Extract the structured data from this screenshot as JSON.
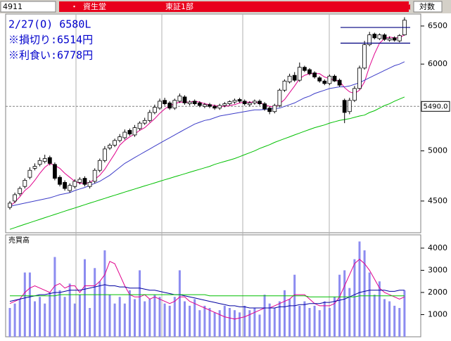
{
  "header": {
    "code": "4911",
    "bullet": "・",
    "name": "資生堂",
    "market": "東証1部",
    "scale": "対数"
  },
  "chart_data": [
    {
      "type": "candlestick",
      "log": true,
      "grid": false,
      "annotations": [
        "2/27(O) 6580L",
        "※損切り:6514円",
        "※利食い:6778円"
      ],
      "up_color": "#ffffff",
      "down_color": "#000000",
      "open": [
        4440,
        4500,
        4570,
        4640,
        4730,
        4820,
        4860,
        4890,
        4930,
        4860,
        4730,
        4680,
        4600,
        4640,
        4680,
        4720,
        4640,
        4690,
        4800,
        4900,
        5030,
        5060,
        5110,
        5140,
        5220,
        5170,
        5240,
        5300,
        5330,
        5420,
        5470,
        5560,
        5530,
        5470,
        5550,
        5600,
        5520,
        5550,
        5530,
        5490,
        5510,
        5490,
        5470,
        5500,
        5520,
        5540,
        5570,
        5550,
        5510,
        5530,
        5550,
        5520,
        5470,
        5430,
        5500,
        5680,
        5780,
        5860,
        5800,
        5960,
        5930,
        5890,
        5830,
        5790,
        5760,
        5850,
        5800,
        5560,
        5430,
        5560,
        5700,
        5950,
        6250,
        6390,
        6330,
        6380,
        6310,
        6340,
        6300,
        6380
      ],
      "high": [
        4500,
        4580,
        4640,
        4720,
        4830,
        4870,
        4930,
        4960,
        4950,
        4880,
        4750,
        4700,
        4670,
        4710,
        4730,
        4740,
        4700,
        4820,
        4920,
        5050,
        5080,
        5130,
        5180,
        5230,
        5240,
        5280,
        5320,
        5360,
        5450,
        5510,
        5580,
        5590,
        5550,
        5580,
        5640,
        5620,
        5560,
        5570,
        5550,
        5530,
        5530,
        5510,
        5520,
        5540,
        5560,
        5580,
        5590,
        5570,
        5550,
        5570,
        5570,
        5540,
        5490,
        5520,
        5700,
        5810,
        5880,
        5900,
        6020,
        5980,
        5950,
        5910,
        5850,
        5810,
        5870,
        5870,
        5820,
        5580,
        5590,
        5730,
        5980,
        6300,
        6420,
        6410,
        6400,
        6400,
        6360,
        6360,
        6390,
        6620
      ],
      "low": [
        4420,
        4480,
        4550,
        4620,
        4710,
        4800,
        4840,
        4870,
        4850,
        4700,
        4640,
        4600,
        4580,
        4620,
        4660,
        4640,
        4620,
        4670,
        4780,
        4880,
        5010,
        5040,
        5090,
        5120,
        5160,
        5150,
        5220,
        5280,
        5310,
        5400,
        5450,
        5500,
        5450,
        5450,
        5530,
        5510,
        5500,
        5500,
        5480,
        5470,
        5470,
        5450,
        5450,
        5480,
        5500,
        5520,
        5530,
        5500,
        5490,
        5510,
        5500,
        5440,
        5400,
        5410,
        5480,
        5660,
        5760,
        5780,
        5780,
        5900,
        5860,
        5820,
        5770,
        5740,
        5740,
        5780,
        5720,
        5300,
        5400,
        5540,
        5690,
        5930,
        6230,
        6320,
        6310,
        6300,
        6290,
        6290,
        6280,
        6370
      ],
      "close": [
        4480,
        4560,
        4620,
        4700,
        4800,
        4840,
        4900,
        4920,
        4870,
        4720,
        4660,
        4620,
        4650,
        4690,
        4710,
        4660,
        4680,
        4800,
        4900,
        5020,
        5060,
        5110,
        5150,
        5200,
        5180,
        5250,
        5300,
        5330,
        5420,
        5480,
        5550,
        5520,
        5470,
        5560,
        5610,
        5530,
        5540,
        5520,
        5500,
        5510,
        5490,
        5470,
        5500,
        5520,
        5545,
        5560,
        5550,
        5520,
        5530,
        5550,
        5520,
        5460,
        5430,
        5500,
        5680,
        5790,
        5850,
        5800,
        5960,
        5920,
        5880,
        5840,
        5790,
        5760,
        5850,
        5790,
        5740,
        5420,
        5560,
        5700,
        5950,
        6250,
        6380,
        6340,
        6380,
        6320,
        6330,
        6310,
        6370,
        6580
      ],
      "overlays": [
        {
          "color": "#e0008c",
          "values": [
            4450,
            4490,
            4540,
            4600,
            4640,
            4700,
            4770,
            4830,
            4870,
            4850,
            4820,
            4770,
            4730,
            4690,
            4670,
            4670,
            4680,
            4710,
            4750,
            4810,
            4890,
            4970,
            5060,
            5110,
            5150,
            5180,
            5220,
            5250,
            5300,
            5350,
            5410,
            5460,
            5500,
            5520,
            5540,
            5540,
            5540,
            5550,
            5540,
            5520,
            5510,
            5500,
            5490,
            5490,
            5500,
            5510,
            5530,
            5540,
            5540,
            5540,
            5530,
            5510,
            5490,
            5480,
            5520,
            5570,
            5650,
            5730,
            5820,
            5860,
            5880,
            5880,
            5880,
            5840,
            5820,
            5800,
            5790,
            5710,
            5660,
            5640,
            5680,
            5780,
            5970,
            6130,
            6270,
            6330,
            6350,
            6340,
            6340,
            6380
          ]
        },
        {
          "color": "#3c3cc8",
          "values": [
            4450,
            4460,
            4470,
            4480,
            4490,
            4500,
            4510,
            4520,
            4530,
            4545,
            4560,
            4570,
            4580,
            4600,
            4615,
            4630,
            4650,
            4670,
            4690,
            4720,
            4750,
            4790,
            4830,
            4870,
            4900,
            4930,
            4960,
            4990,
            5020,
            5050,
            5080,
            5110,
            5140,
            5170,
            5200,
            5230,
            5260,
            5290,
            5310,
            5330,
            5340,
            5360,
            5380,
            5390,
            5400,
            5410,
            5420,
            5430,
            5440,
            5450,
            5450,
            5455,
            5460,
            5465,
            5470,
            5490,
            5510,
            5530,
            5560,
            5590,
            5610,
            5640,
            5660,
            5680,
            5700,
            5710,
            5720,
            5720,
            5730,
            5750,
            5770,
            5800,
            5830,
            5860,
            5890,
            5920,
            5950,
            5980,
            6000,
            6030
          ]
        },
        {
          "color": "#00c000",
          "values": [
            4240,
            4255,
            4270,
            4285,
            4300,
            4315,
            4330,
            4345,
            4360,
            4375,
            4390,
            4405,
            4420,
            4435,
            4450,
            4465,
            4480,
            4495,
            4510,
            4525,
            4540,
            4555,
            4570,
            4585,
            4600,
            4615,
            4630,
            4645,
            4660,
            4675,
            4690,
            4705,
            4720,
            4735,
            4750,
            4765,
            4780,
            4795,
            4810,
            4825,
            4840,
            4860,
            4875,
            4890,
            4905,
            4920,
            4940,
            4960,
            4980,
            5000,
            5025,
            5045,
            5065,
            5090,
            5110,
            5130,
            5150,
            5170,
            5190,
            5210,
            5230,
            5250,
            5265,
            5280,
            5300,
            5315,
            5330,
            5340,
            5350,
            5365,
            5380,
            5390,
            5420,
            5440,
            5470,
            5500,
            5520,
            5550,
            5575,
            5600
          ]
        }
      ],
      "levels": [
        6480,
        6270
      ],
      "level_color": "#000080",
      "price_line": {
        "value": 5490,
        "label": "5490.0"
      },
      "ylim": [
        4210,
        6665
      ],
      "yticks": [
        4500,
        5000,
        6000,
        6500
      ]
    },
    {
      "type": "bar",
      "title": "売買高",
      "color": "#8c8cf0",
      "values": [
        1300,
        1500,
        1700,
        2900,
        2900,
        1600,
        1800,
        1500,
        2000,
        3600,
        2100,
        1800,
        2400,
        1500,
        1900,
        3500,
        1300,
        3100,
        2500,
        3900,
        1900,
        1500,
        1800,
        1500,
        2100,
        1700,
        3000,
        1600,
        1700,
        1900,
        1800,
        1500,
        1400,
        1800,
        3000,
        1600,
        1400,
        1700,
        1200,
        1400,
        1300,
        1100,
        1200,
        1400,
        1300,
        1200,
        1100,
        1400,
        1200,
        1300,
        1000,
        1900,
        1500,
        1300,
        1600,
        2100,
        1700,
        2800,
        1400,
        1600,
        1300,
        1400,
        1200,
        1600,
        1300,
        1800,
        2800,
        3000,
        2200,
        3500,
        4300,
        3900,
        2900,
        1900,
        2500,
        1700,
        1600,
        1400,
        1300,
        2100
      ],
      "overlays": [
        {
          "color": "#e0008c",
          "values": [
            1500,
            1600,
            1700,
            2000,
            2200,
            2300,
            2200,
            2100,
            2000,
            2300,
            2400,
            2200,
            2300,
            2300,
            2000,
            2300,
            2300,
            2300,
            2500,
            2800,
            3400,
            3300,
            2800,
            2300,
            1900,
            1800,
            1800,
            1900,
            1700,
            1800,
            1700,
            1600,
            1500,
            1600,
            1800,
            1800,
            1600,
            1500,
            1400,
            1300,
            1200,
            1100,
            1000,
            900,
            850,
            800,
            850,
            900,
            1000,
            1100,
            1200,
            1300,
            1300,
            1400,
            1500,
            1600,
            1700,
            1900,
            1900,
            1900,
            1700,
            1500,
            1400,
            1400,
            1400,
            1500,
            1800,
            2300,
            2800,
            3300,
            3500,
            3300,
            3000,
            2600,
            2200,
            2000,
            1900,
            1800,
            1700,
            1800
          ]
        },
        {
          "color": "#0000a0",
          "values": [
            1600,
            1650,
            1700,
            1750,
            1800,
            1850,
            1900,
            1900,
            1950,
            2000,
            2000,
            2050,
            2100,
            2100,
            2100,
            2150,
            2200,
            2250,
            2300,
            2350,
            2300,
            2300,
            2250,
            2250,
            2200,
            2200,
            2200,
            2150,
            2100,
            2100,
            2050,
            2000,
            1950,
            1900,
            1900,
            1850,
            1800,
            1750,
            1700,
            1650,
            1600,
            1550,
            1500,
            1450,
            1400,
            1400,
            1350,
            1350,
            1300,
            1300,
            1300,
            1300,
            1300,
            1300,
            1350,
            1350,
            1400,
            1400,
            1450,
            1450,
            1500,
            1500,
            1500,
            1550,
            1550,
            1600,
            1650,
            1700,
            1800,
            1900,
            2000,
            2050,
            2100,
            2100,
            2100,
            2100,
            2050,
            2050,
            2100,
            2100
          ]
        },
        {
          "color": "#00c000",
          "values": [
            1850,
            1850,
            1850,
            1850,
            1850,
            1850,
            1850,
            1850,
            1850,
            1850,
            1900,
            1900,
            1900,
            1900,
            1900,
            1900,
            1900,
            1900,
            1900,
            1900,
            1900,
            1900,
            1900,
            1900,
            1900,
            1900,
            1900,
            1900,
            1900,
            1900,
            1900,
            1900,
            1900,
            1900,
            1900,
            1900,
            1900,
            1900,
            1900,
            1900,
            1850,
            1850,
            1850,
            1850,
            1850,
            1850,
            1850,
            1850,
            1850,
            1850,
            1850,
            1850,
            1850,
            1850,
            1850,
            1850,
            1850,
            1850,
            1850,
            1850,
            1800,
            1800,
            1800,
            1800,
            1800,
            1800,
            1800,
            1800,
            1800,
            1800,
            1850,
            1850,
            1850,
            1850,
            1850,
            1850,
            1850,
            1850,
            1850,
            1850
          ]
        }
      ],
      "ylim": [
        0,
        4600
      ],
      "yticks": [
        1000,
        2000,
        3000,
        4000
      ]
    }
  ]
}
